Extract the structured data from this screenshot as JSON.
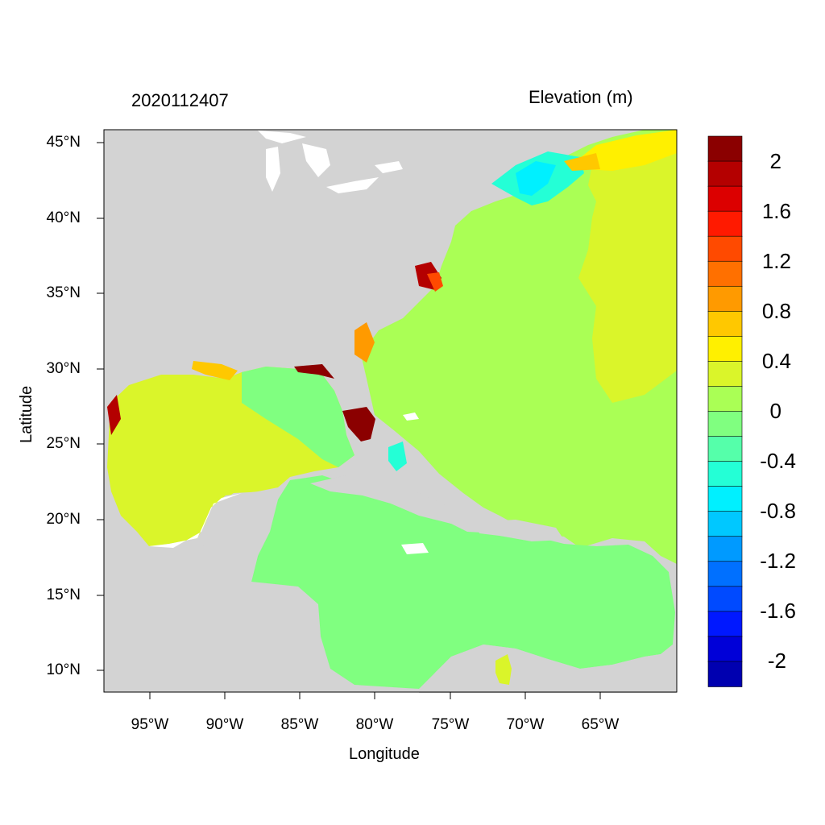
{
  "header": {
    "timestamp": "2020112407",
    "variable_label": "Elevation (m)"
  },
  "axes": {
    "xlabel": "Longitude",
    "ylabel": "Latitude",
    "x_ticks": [
      "95°W",
      "90°W",
      "85°W",
      "80°W",
      "75°W",
      "70°W",
      "65°W"
    ],
    "y_ticks": [
      "45°N",
      "40°N",
      "35°N",
      "30°N",
      "25°N",
      "20°N",
      "15°N",
      "10°N"
    ]
  },
  "colorbar": {
    "labels": [
      "2",
      "1.6",
      "1.2",
      "0.8",
      "0.4",
      "0",
      "-0.4",
      "-0.8",
      "-1.2",
      "-1.6",
      "-2"
    ],
    "colors": [
      "#8b0000",
      "#b40000",
      "#dc0000",
      "#ff1a00",
      "#ff4a00",
      "#ff7000",
      "#ff9a00",
      "#ffc800",
      "#fff000",
      "#daf52a",
      "#aaff55",
      "#80ff80",
      "#55ffaa",
      "#24ffd6",
      "#00f0ff",
      "#00c8ff",
      "#009aff",
      "#0070ff",
      "#004aff",
      "#0018ff",
      "#0000d8",
      "#0000b0"
    ]
  },
  "colors": {
    "land": "#d3d3d3",
    "water_white": "#ffffff",
    "ocean_atlantic": "#aaff55",
    "ocean_caribbean": "#80ff80"
  }
}
